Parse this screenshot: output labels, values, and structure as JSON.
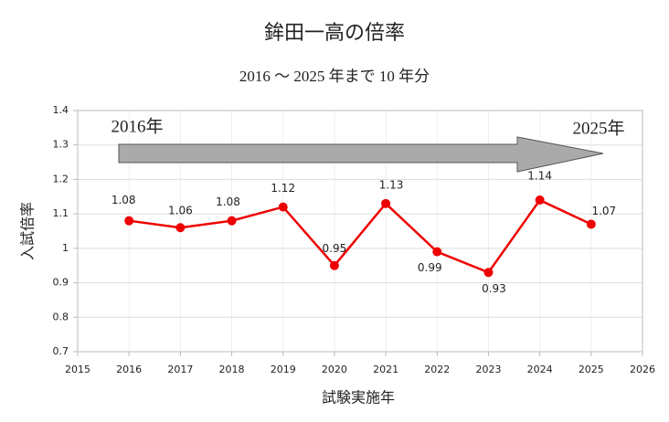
{
  "chart_data": {
    "type": "line",
    "title": "鉾田一高の倍率",
    "subtitle": "2016 ～ 2025 年まで 10 年分",
    "x_label": "試験実施年",
    "y_label": "入試倍率",
    "annotations": [
      "2016年",
      "2025年"
    ],
    "x": [
      2016,
      2017,
      2018,
      2019,
      2020,
      2021,
      2022,
      2023,
      2024,
      2025
    ],
    "series": [
      {
        "name": "入試倍率",
        "color": "#ee0000",
        "values": [
          1.08,
          1.06,
          1.08,
          1.12,
          0.95,
          1.13,
          0.99,
          0.93,
          1.14,
          1.07
        ]
      }
    ],
    "xlim": [
      2015,
      2026
    ],
    "xticks": [
      2015,
      2016,
      2017,
      2018,
      2019,
      2020,
      2021,
      2022,
      2023,
      2024,
      2025,
      2026
    ],
    "ylim": [
      0.7,
      1.4
    ],
    "yticks": [
      0.7,
      0.8,
      0.9,
      1,
      1.1,
      1.2,
      1.3,
      1.4
    ],
    "grid": true
  }
}
